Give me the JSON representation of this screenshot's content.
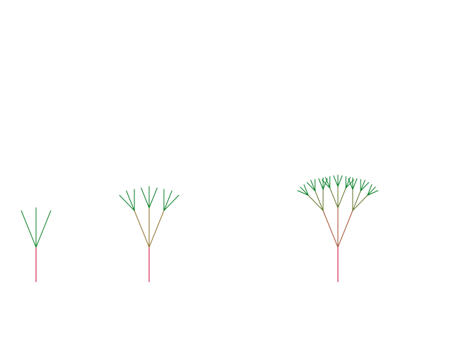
{
  "figure": {
    "trees": [
      {
        "name": "tree-depth-1",
        "depth": 1
      },
      {
        "name": "tree-depth-2",
        "depth": 2
      },
      {
        "name": "tree-depth-3",
        "depth": 3
      }
    ],
    "branches_per_node": 3,
    "colors": {
      "trunk": "#cc0033",
      "mid_level_1": "#b4552e",
      "mid_level_2": "#8a6a22",
      "leaf_tip": "#007a1f",
      "background": "#ffffff"
    }
  }
}
